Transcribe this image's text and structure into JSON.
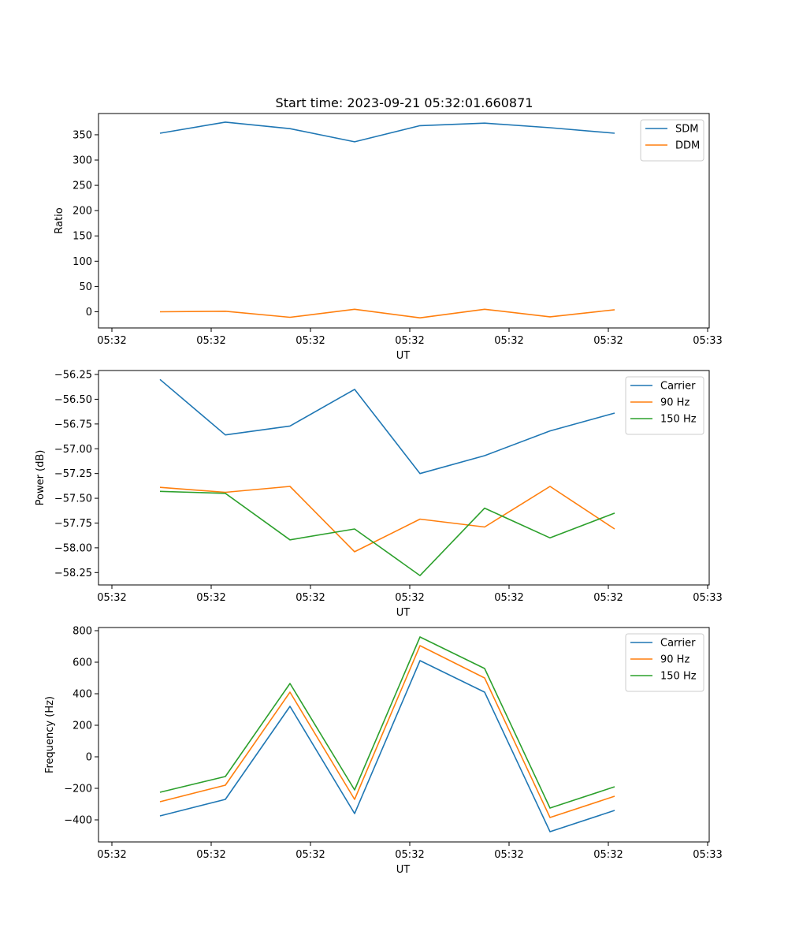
{
  "chart_data": [
    {
      "type": "line",
      "title": "Start time: 2023-09-21 05:32:01.660871",
      "xlabel": "UT",
      "ylabel": "Ratio",
      "x_tick_labels": [
        "05:32",
        "05:32",
        "05:32",
        "05:32",
        "05:32",
        "05:32",
        "05:32"
      ],
      "x_last_tick_label": "05:33",
      "x": [
        1,
        2,
        3,
        4,
        5,
        6,
        7,
        8
      ],
      "xlim": [
        0.8,
        9.15
      ],
      "ylim": [
        -32,
        392
      ],
      "yticks": [
        0,
        50,
        100,
        150,
        200,
        250,
        300,
        350
      ],
      "legend_position": "top-right",
      "series": [
        {
          "name": "SDM",
          "color": "#1f77b4",
          "values": [
            353,
            375,
            362,
            336,
            368,
            373,
            364,
            353
          ]
        },
        {
          "name": "DDM",
          "color": "#ff7f0e",
          "values": [
            0,
            1,
            -11,
            5,
            -12,
            5,
            -10,
            4
          ]
        }
      ]
    },
    {
      "type": "line",
      "title": "",
      "xlabel": "UT",
      "ylabel": "Power (dB)",
      "x_tick_labels": [
        "05:32",
        "05:32",
        "05:32",
        "05:32",
        "05:32",
        "05:32",
        "05:32"
      ],
      "x_last_tick_label": "05:33",
      "x": [
        1,
        2,
        3,
        4,
        5,
        6,
        7,
        8
      ],
      "xlim": [
        0.8,
        9.15
      ],
      "ylim": [
        -58.375,
        -56.21
      ],
      "yticks": [
        -58.25,
        -58.0,
        -57.75,
        -57.5,
        -57.25,
        -57.0,
        -56.75,
        -56.5,
        -56.25
      ],
      "y_tick_labels": [
        "−58.25",
        "−58.00",
        "−57.75",
        "−57.50",
        "−57.25",
        "−57.00",
        "−56.75",
        "−56.50",
        "−56.25"
      ],
      "legend_position": "top-right",
      "series": [
        {
          "name": "Carrier",
          "color": "#1f77b4",
          "values": [
            -56.3,
            -56.86,
            -56.77,
            -56.4,
            -57.25,
            -57.07,
            -56.82,
            -56.64
          ]
        },
        {
          "name": "90 Hz",
          "color": "#ff7f0e",
          "values": [
            -57.39,
            -57.44,
            -57.38,
            -58.04,
            -57.71,
            -57.79,
            -57.38,
            -57.81
          ]
        },
        {
          "name": "150 Hz",
          "color": "#2ca02c",
          "values": [
            -57.43,
            -57.45,
            -57.92,
            -57.81,
            -58.28,
            -57.6,
            -57.9,
            -57.65
          ]
        }
      ]
    },
    {
      "type": "line",
      "title": "",
      "xlabel": "UT",
      "ylabel": "Frequency (Hz)",
      "x_tick_labels": [
        "05:32",
        "05:32",
        "05:32",
        "05:32",
        "05:32",
        "05:32",
        "05:32"
      ],
      "x_last_tick_label": "05:33",
      "x": [
        1,
        2,
        3,
        4,
        5,
        6,
        7,
        8
      ],
      "xlim": [
        0.8,
        9.15
      ],
      "ylim": [
        -540,
        820
      ],
      "yticks": [
        -400,
        -200,
        0,
        200,
        400,
        600,
        800
      ],
      "y_tick_labels": [
        "−400",
        "−200",
        "0",
        "200",
        "400",
        "600",
        "800"
      ],
      "legend_position": "top-right",
      "series": [
        {
          "name": "Carrier",
          "color": "#1f77b4",
          "values": [
            -375,
            -270,
            320,
            -360,
            610,
            410,
            -475,
            -340
          ]
        },
        {
          "name": "90 Hz",
          "color": "#ff7f0e",
          "values": [
            -285,
            -180,
            410,
            -270,
            705,
            500,
            -385,
            -250
          ]
        },
        {
          "name": "150 Hz",
          "color": "#2ca02c",
          "values": [
            -225,
            -125,
            465,
            -210,
            760,
            560,
            -325,
            -190
          ]
        }
      ]
    }
  ]
}
